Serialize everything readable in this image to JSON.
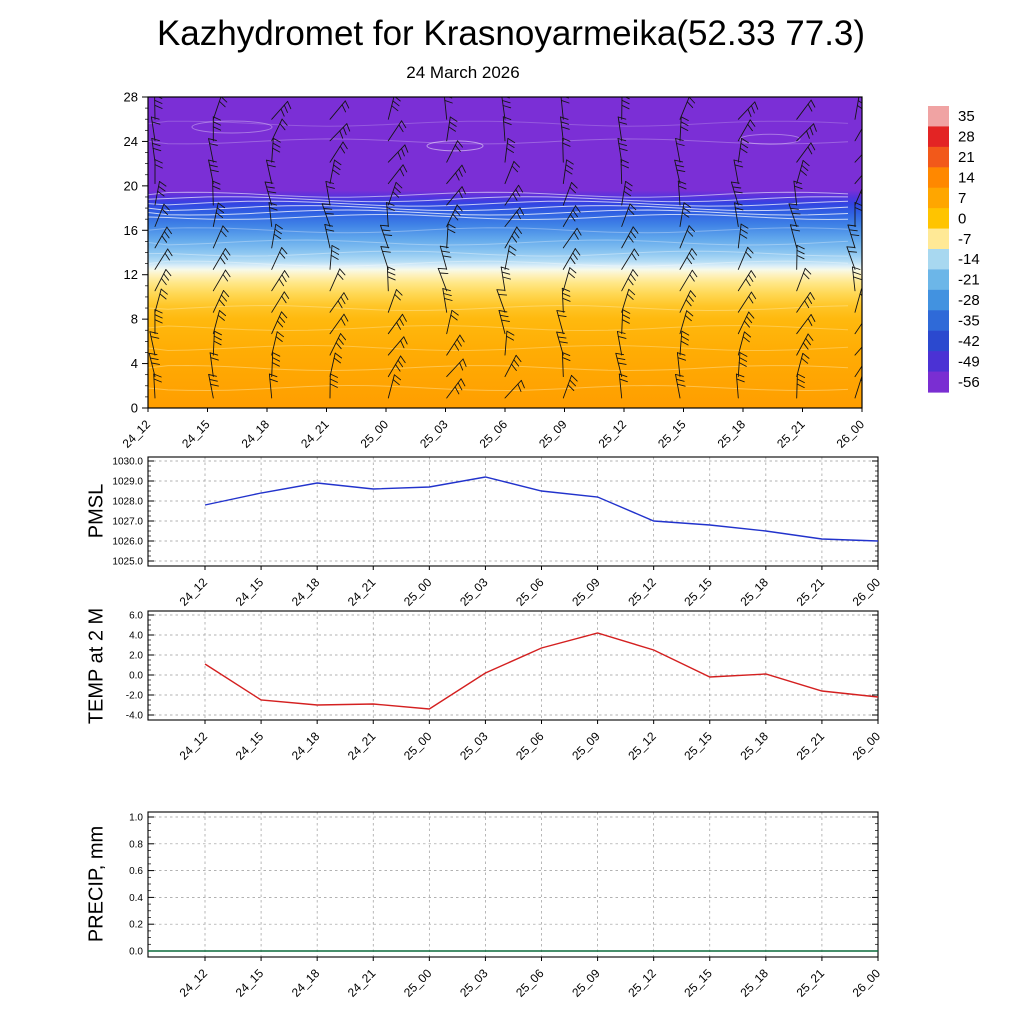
{
  "title": "Kazhydromet for Krasnoyarmeika(52.33 77.3)",
  "subtitle": "24 March 2026",
  "time_labels": [
    "24_12",
    "24_15",
    "24_18",
    "24_21",
    "25_00",
    "25_03",
    "25_06",
    "25_09",
    "25_12",
    "25_15",
    "25_18",
    "25_21",
    "26_00"
  ],
  "chart_data": [
    {
      "type": "heatmap",
      "name": "temperature-height-profile",
      "ylabel": "",
      "ylim": [
        0,
        28
      ],
      "yticks": [
        28,
        24,
        20,
        16,
        12,
        8,
        4,
        0
      ],
      "ytick_labels": [
        "28",
        "24",
        "20",
        "16",
        "12",
        "8",
        "4",
        "0"
      ],
      "overlay": "wind barbs at each time step and level",
      "colorbar": {
        "tick_labels": [
          "35",
          "28",
          "21",
          "14",
          "7",
          "0",
          "-7",
          "-14",
          "-21",
          "-28",
          "-35",
          "-42",
          "-49",
          "-56"
        ],
        "colors_top_to_bottom": [
          "#f0a3a3",
          "#e32424",
          "#f2591a",
          "#ff8800",
          "#ffa600",
          "#ffc400",
          "#ffe996",
          "#a8d8f0",
          "#6cb6e8",
          "#4292e0",
          "#2f6ad8",
          "#2b49cf",
          "#4b32d4",
          "#7a2ed2"
        ]
      },
      "profile_gradient_top_to_bottom": [
        [
          28,
          "#7b2fd6"
        ],
        [
          19.6,
          "#7b2fd6"
        ],
        [
          19.0,
          "#5533dd"
        ],
        [
          18.4,
          "#3344e2"
        ],
        [
          17.6,
          "#2f5fe2"
        ],
        [
          16.5,
          "#3f82e6"
        ],
        [
          15.2,
          "#62a8ec"
        ],
        [
          14,
          "#8cc6f1"
        ],
        [
          13.2,
          "#b5ddf5"
        ],
        [
          12.8,
          "#dbeef8"
        ],
        [
          12.45,
          "#f7fae9"
        ],
        [
          12.0,
          "#fdf2c0"
        ],
        [
          11.3,
          "#ffe88a"
        ],
        [
          10.3,
          "#ffd855"
        ],
        [
          9.2,
          "#ffc628"
        ],
        [
          8,
          "#ffb90e"
        ],
        [
          5,
          "#ffac04"
        ],
        [
          0,
          "#ff9e00"
        ]
      ]
    },
    {
      "type": "line",
      "name": "pmsl",
      "ylabel": "PMSL",
      "color": "#2233cc",
      "ylim": [
        1025.0,
        1030.0
      ],
      "ytick_labels": [
        "1030.0",
        "1029.0",
        "1028.0",
        "1027.0",
        "1026.0",
        "1025.0"
      ],
      "values": [
        1027.8,
        1028.4,
        1028.9,
        1028.6,
        1028.7,
        1029.2,
        1028.5,
        1028.2,
        1027.0,
        1026.8,
        1026.5,
        1026.1,
        1026.0
      ]
    },
    {
      "type": "line",
      "name": "temp-2m",
      "ylabel": "TEMP at 2 M",
      "color": "#d42020",
      "ylim": [
        -4.0,
        6.0
      ],
      "ytick_labels": [
        "6.0",
        "4.0",
        "2.0",
        "0.0",
        "-2.0",
        "-4.0"
      ],
      "values": [
        1.1,
        -2.5,
        -3.0,
        -2.9,
        -3.4,
        0.2,
        2.7,
        4.2,
        2.5,
        -0.2,
        0.1,
        -1.6,
        -2.2
      ]
    },
    {
      "type": "line",
      "name": "precip",
      "ylabel": "PRECIP, mm",
      "color": "#0a6a3a",
      "ylim": [
        0.0,
        1.0
      ],
      "ytick_labels": [
        "1.0",
        "0.8",
        "0.6",
        "0.4",
        "0.2",
        "0.0"
      ],
      "values": [
        0,
        0,
        0,
        0,
        0,
        0,
        0,
        0,
        0,
        0,
        0,
        0,
        0
      ]
    }
  ]
}
